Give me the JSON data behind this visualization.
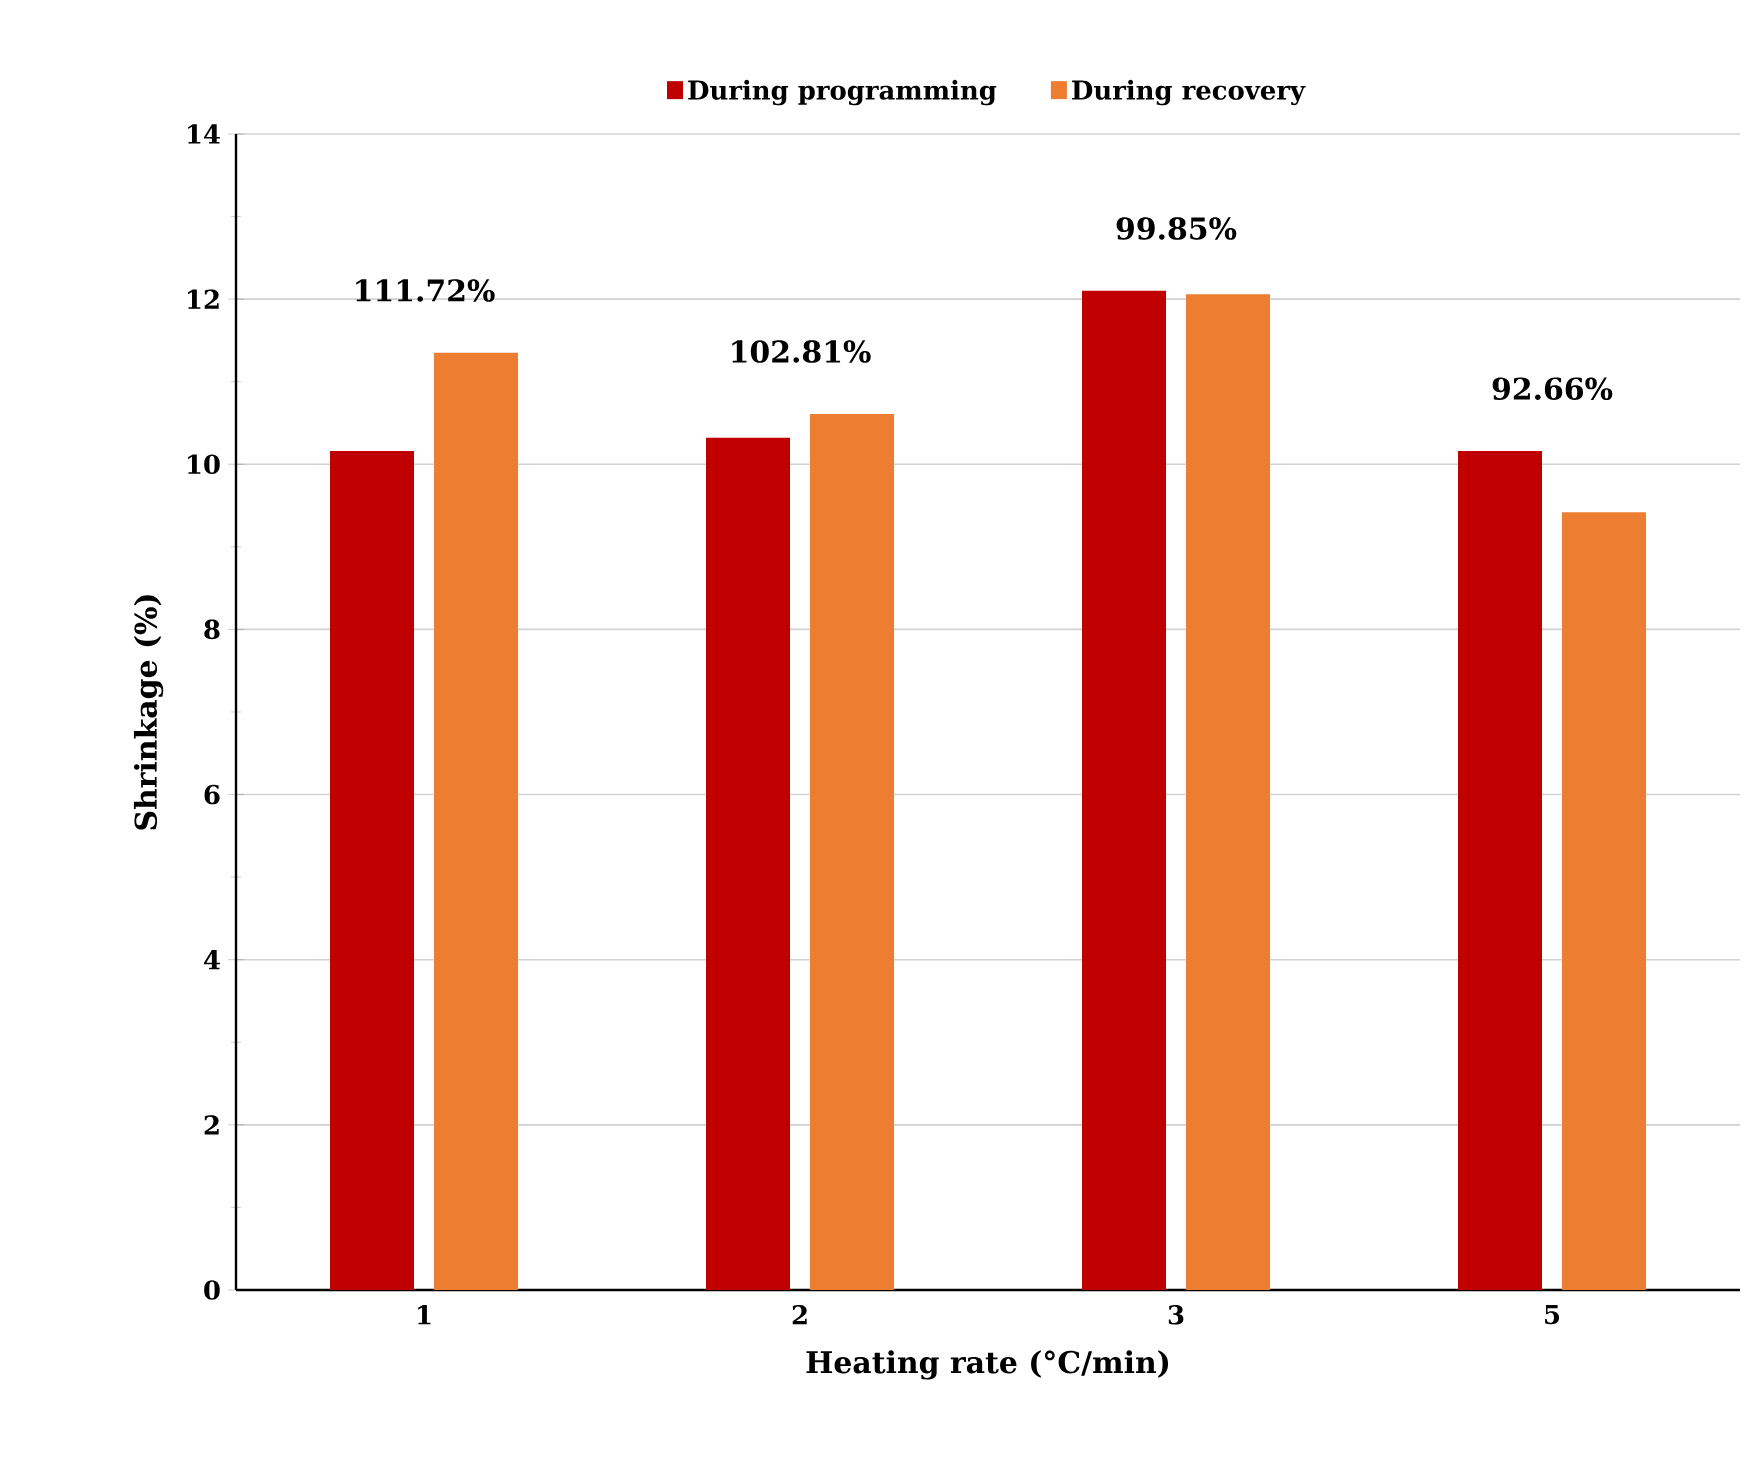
{
  "chart_data": {
    "type": "bar",
    "xlabel": "Heating rate (°C/min)",
    "ylabel": "Shrinkage (%)",
    "categories": [
      "1",
      "2",
      "3",
      "5"
    ],
    "series": [
      {
        "name": "During programming",
        "color": "#c00000",
        "values": [
          10.16,
          10.32,
          12.1,
          10.16
        ]
      },
      {
        "name": "During recovery",
        "color": "#ed7d31",
        "values": [
          11.35,
          10.61,
          12.06,
          9.42
        ]
      }
    ],
    "ylim": [
      0,
      14
    ],
    "yticks": [
      0,
      2,
      4,
      6,
      8,
      10,
      12,
      14
    ],
    "grid": "y",
    "legend": "top",
    "annotations": [
      "111.72%",
      "102.81%",
      "99.85%",
      "92.66%"
    ]
  }
}
